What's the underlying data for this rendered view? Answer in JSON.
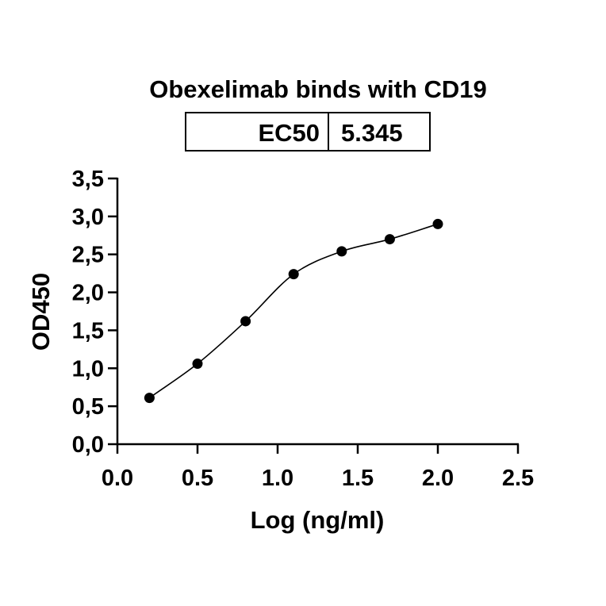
{
  "chart_data": {
    "type": "scatter",
    "title": "Obexelimab binds with CD19",
    "xlabel": "Log (ng/ml)",
    "ylabel": "OD450",
    "xlim": [
      0.0,
      2.5
    ],
    "ylim": [
      0.0,
      3.5
    ],
    "x_ticks": [
      "0.0",
      "0.5",
      "1.0",
      "1.5",
      "2.0",
      "2.5"
    ],
    "y_ticks": [
      "0,0",
      "0,5",
      "1,0",
      "1,5",
      "2,0",
      "2,5",
      "3,0",
      "3,5"
    ],
    "grid": false,
    "series": [
      {
        "x": [
          0.2,
          0.5,
          0.8,
          1.1,
          1.4,
          1.7,
          2.0
        ],
        "y": [
          0.61,
          1.06,
          1.62,
          2.24,
          2.54,
          2.7,
          2.9
        ],
        "fit": "sigmoidal"
      }
    ],
    "stats_table": {
      "label": "EC50",
      "value": "5.345"
    }
  }
}
